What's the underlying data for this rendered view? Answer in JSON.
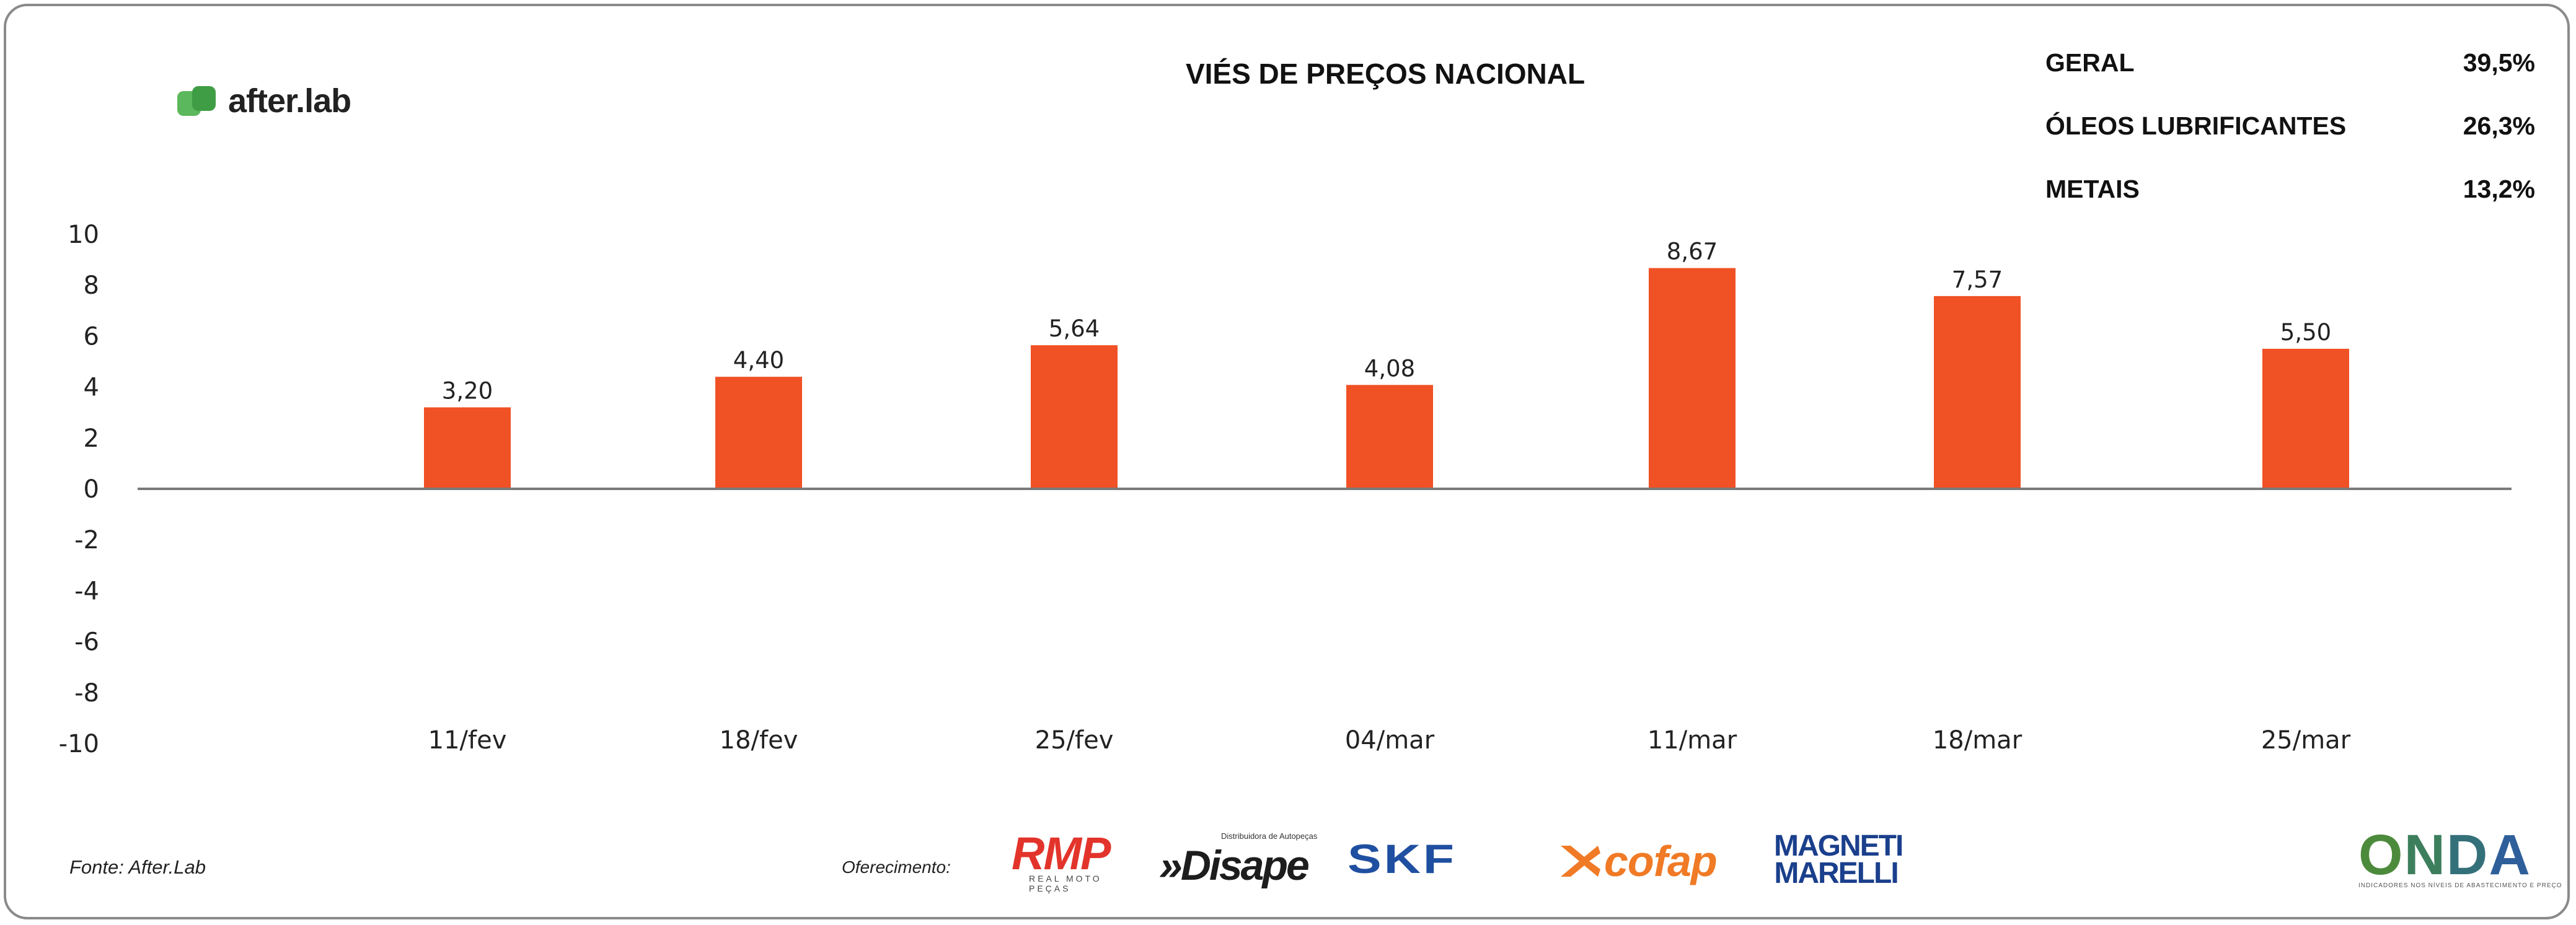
{
  "brand": {
    "name": "after.lab",
    "accent": "#5cb85c"
  },
  "chart_data": {
    "type": "bar",
    "title": "VIÉS DE PREÇOS NACIONAL",
    "categories": [
      "11/fev",
      "18/fev",
      "25/fev",
      "04/mar",
      "11/mar",
      "18/mar",
      "25/mar"
    ],
    "values": [
      3.2,
      4.4,
      5.64,
      4.08,
      8.67,
      7.57,
      5.5
    ],
    "data_labels": [
      "3,20",
      "4,40",
      "5,64",
      "4,08",
      "8,67",
      "7,57",
      "5,50"
    ],
    "y_ticks": [
      "10",
      "8",
      "6",
      "4",
      "2",
      "0",
      "-2",
      "-4",
      "-6",
      "-8",
      "-10"
    ],
    "ylim": [
      -10,
      10
    ],
    "xlabel": "",
    "ylabel": "",
    "grid": false,
    "bar_color": "#f05125"
  },
  "summary": [
    {
      "label": "GERAL",
      "value": "39,5%"
    },
    {
      "label": "ÓLEOS LUBRIFICANTES",
      "value": "26,3%"
    },
    {
      "label": "METAIS",
      "value": "13,2%"
    }
  ],
  "footer": {
    "source": "Fonte: After.Lab",
    "offer_label": "Oferecimento:"
  },
  "sponsors": {
    "rmp": {
      "name": "RMP",
      "tagline": "REAL MOTO PEÇAS"
    },
    "disape": {
      "name": "»Disape",
      "tagline": "Distribuidora de Autopeças"
    },
    "skf": {
      "name": "SKF"
    },
    "cofap": {
      "name": "cofap"
    },
    "magneti": {
      "line1": "MAGNETI",
      "line2": "MARELLI"
    },
    "onda": {
      "name": "ONDA",
      "tagline": "INDICADORES NOS NÍVEIS DE ABASTECIMENTO E PREÇO"
    }
  }
}
